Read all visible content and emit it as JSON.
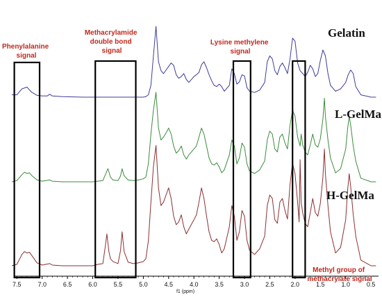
{
  "chart_data": {
    "type": "line",
    "title": "",
    "xlabel": "f1 (ppm)",
    "ylabel": "",
    "xlim": [
      7.6,
      0.35
    ],
    "x_reversed": true,
    "x_ticks": [
      "7.5",
      "7.0",
      "6.5",
      "6.0",
      "5.5",
      "5.0",
      "4.5",
      "4.0",
      "3.5",
      "3.0",
      "2.5",
      "2.0",
      "1.5",
      "1.0",
      "0.5"
    ],
    "series": [
      {
        "name": "Gelatin",
        "color": "#3c3c9a",
        "x": [
          7.6,
          7.5,
          7.4,
          7.3,
          7.25,
          7.2,
          7.1,
          7.0,
          6.9,
          6.85,
          6.8,
          6.6,
          6.2,
          5.8,
          5.4,
          5.1,
          5.0,
          4.95,
          4.9,
          4.85,
          4.8,
          4.75,
          4.7,
          4.65,
          4.6,
          4.5,
          4.45,
          4.4,
          4.35,
          4.3,
          4.25,
          4.2,
          4.15,
          4.1,
          4.0,
          3.95,
          3.9,
          3.85,
          3.8,
          3.75,
          3.7,
          3.65,
          3.6,
          3.55,
          3.5,
          3.45,
          3.4,
          3.3,
          3.25,
          3.2,
          3.15,
          3.1,
          3.05,
          3.0,
          2.95,
          2.9,
          2.8,
          2.7,
          2.6,
          2.55,
          2.5,
          2.45,
          2.4,
          2.35,
          2.3,
          2.25,
          2.2,
          2.15,
          2.1,
          2.05,
          2.0,
          1.95,
          1.9,
          1.85,
          1.8,
          1.75,
          1.7,
          1.65,
          1.6,
          1.55,
          1.5,
          1.45,
          1.4,
          1.35,
          1.3,
          1.2,
          1.1,
          1.0,
          0.95,
          0.9,
          0.85,
          0.8,
          0.7,
          0.5,
          0.4
        ],
        "values": [
          4,
          4,
          14,
          17,
          12,
          8,
          3,
          2,
          2,
          5,
          2,
          1,
          0,
          0,
          0,
          0,
          0,
          1,
          4,
          20,
          70,
          120,
          60,
          45,
          40,
          52,
          58,
          54,
          38,
          32,
          35,
          40,
          30,
          25,
          35,
          38,
          42,
          55,
          60,
          50,
          38,
          28,
          20,
          18,
          22,
          18,
          10,
          20,
          48,
          40,
          22,
          26,
          38,
          36,
          16,
          10,
          8,
          12,
          25,
          60,
          70,
          65,
          45,
          38,
          52,
          58,
          50,
          40,
          65,
          100,
          95,
          58,
          45,
          40,
          35,
          42,
          54,
          48,
          35,
          40,
          62,
          80,
          70,
          40,
          20,
          10,
          14,
          25,
          38,
          46,
          40,
          18,
          4,
          0,
          0
        ]
      },
      {
        "name": "L-GelMa",
        "color": "#3b8a3b",
        "x": [
          7.6,
          7.5,
          7.4,
          7.35,
          7.3,
          7.25,
          7.2,
          7.1,
          7.0,
          6.85,
          6.8,
          6.6,
          6.2,
          6.0,
          5.8,
          5.75,
          5.7,
          5.65,
          5.6,
          5.5,
          5.45,
          5.42,
          5.38,
          5.3,
          5.2,
          5.1,
          5.0,
          4.95,
          4.9,
          4.85,
          4.8,
          4.75,
          4.7,
          4.65,
          4.6,
          4.55,
          4.5,
          4.45,
          4.4,
          4.35,
          4.3,
          4.25,
          4.2,
          4.15,
          4.1,
          4.0,
          3.95,
          3.9,
          3.85,
          3.8,
          3.75,
          3.7,
          3.65,
          3.6,
          3.55,
          3.5,
          3.45,
          3.4,
          3.3,
          3.25,
          3.2,
          3.15,
          3.1,
          3.05,
          3.0,
          2.95,
          2.9,
          2.8,
          2.7,
          2.6,
          2.55,
          2.5,
          2.45,
          2.4,
          2.35,
          2.3,
          2.25,
          2.2,
          2.15,
          2.1,
          2.05,
          2.0,
          1.95,
          1.9,
          1.88,
          1.85,
          1.8,
          1.75,
          1.7,
          1.65,
          1.6,
          1.55,
          1.5,
          1.45,
          1.42,
          1.4,
          1.35,
          1.3,
          1.2,
          1.1,
          1.0,
          0.96,
          0.93,
          0.9,
          0.85,
          0.8,
          0.7,
          0.5,
          0.4
        ],
        "values": [
          0,
          2,
          12,
          16,
          14,
          15,
          10,
          3,
          1,
          3,
          1,
          0,
          0,
          0,
          2,
          12,
          22,
          8,
          3,
          2,
          10,
          22,
          10,
          3,
          2,
          3,
          5,
          8,
          30,
          80,
          120,
          150,
          90,
          70,
          75,
          82,
          90,
          80,
          60,
          48,
          52,
          60,
          45,
          38,
          45,
          55,
          60,
          75,
          90,
          80,
          60,
          40,
          30,
          28,
          32,
          25,
          15,
          20,
          45,
          70,
          60,
          30,
          40,
          65,
          58,
          30,
          18,
          14,
          20,
          35,
          70,
          85,
          80,
          55,
          50,
          75,
          80,
          65,
          55,
          95,
          120,
          110,
          75,
          60,
          80,
          62,
          50,
          45,
          62,
          80,
          62,
          58,
          72,
          105,
          140,
          110,
          70,
          40,
          15,
          22,
          55,
          90,
          110,
          95,
          60,
          35,
          6,
          0,
          0
        ]
      },
      {
        "name": "H-GelMa",
        "color": "#8a3030",
        "x": [
          7.6,
          7.5,
          7.4,
          7.35,
          7.3,
          7.25,
          7.2,
          7.1,
          7.0,
          6.85,
          6.8,
          6.6,
          6.2,
          6.0,
          5.9,
          5.8,
          5.75,
          5.72,
          5.68,
          5.65,
          5.6,
          5.5,
          5.45,
          5.42,
          5.38,
          5.3,
          5.2,
          5.1,
          5.0,
          4.95,
          4.9,
          4.85,
          4.8,
          4.75,
          4.7,
          4.65,
          4.6,
          4.55,
          4.5,
          4.45,
          4.4,
          4.35,
          4.3,
          4.25,
          4.2,
          4.15,
          4.1,
          4.0,
          3.95,
          3.9,
          3.85,
          3.8,
          3.75,
          3.7,
          3.65,
          3.6,
          3.55,
          3.5,
          3.45,
          3.4,
          3.3,
          3.25,
          3.2,
          3.15,
          3.1,
          3.05,
          3.0,
          2.95,
          2.9,
          2.8,
          2.7,
          2.6,
          2.55,
          2.5,
          2.45,
          2.4,
          2.35,
          2.3,
          2.25,
          2.2,
          2.15,
          2.1,
          2.05,
          2.0,
          1.95,
          1.92,
          1.9,
          1.88,
          1.85,
          1.8,
          1.75,
          1.7,
          1.65,
          1.6,
          1.55,
          1.5,
          1.45,
          1.42,
          1.4,
          1.35,
          1.3,
          1.2,
          1.1,
          1.0,
          0.96,
          0.93,
          0.9,
          0.85,
          0.8,
          0.7,
          0.5,
          0.4
        ],
        "values": [
          0,
          2,
          16,
          20,
          18,
          19,
          14,
          4,
          1,
          3,
          1,
          0,
          0,
          0,
          2,
          3,
          28,
          45,
          20,
          10,
          6,
          3,
          22,
          48,
          20,
          5,
          3,
          4,
          6,
          10,
          35,
          90,
          140,
          170,
          110,
          85,
          90,
          100,
          110,
          95,
          70,
          58,
          62,
          72,
          55,
          45,
          52,
          65,
          72,
          90,
          110,
          95,
          70,
          48,
          36,
          34,
          38,
          30,
          18,
          24,
          55,
          85,
          70,
          36,
          48,
          78,
          70,
          36,
          22,
          16,
          24,
          42,
          85,
          100,
          95,
          65,
          60,
          90,
          95,
          78,
          66,
          115,
          145,
          130,
          90,
          62,
          150,
          90,
          75,
          60,
          55,
          75,
          95,
          75,
          70,
          88,
          125,
          165,
          130,
          85,
          48,
          18,
          26,
          65,
          108,
          130,
          112,
          72,
          42,
          8,
          0,
          0
        ]
      }
    ],
    "annotations": [
      "Phenylalanine signal",
      "Methacrylamide double bond signal",
      "Lysine methylene signal",
      "Methyl group of methacrylate signal"
    ],
    "highlight_regions_ppm": [
      [
        7.55,
        7.05
      ],
      [
        5.95,
        5.15
      ],
      [
        3.22,
        2.88
      ],
      [
        2.05,
        1.8
      ]
    ],
    "grid": false,
    "legend": "right, as text labels beside each trace"
  },
  "labels": {
    "gelatin": "Gelatin",
    "l_gelma": "L-GelMa",
    "h_gelma": "H-GelMa",
    "phenylalanine": [
      "Phenylalanine",
      "signal"
    ],
    "methacrylamide": [
      "Methacrylamide",
      "double bond",
      "signal"
    ],
    "lysine": [
      "Lysine methylene",
      "signal"
    ],
    "methyl": [
      "Methyl group of",
      "methacrylate signal"
    ],
    "x_axis_title": "f1 (ppm)"
  },
  "colors": {
    "annotation": "#c0281e",
    "box": "#000000",
    "axis": "#000000"
  }
}
